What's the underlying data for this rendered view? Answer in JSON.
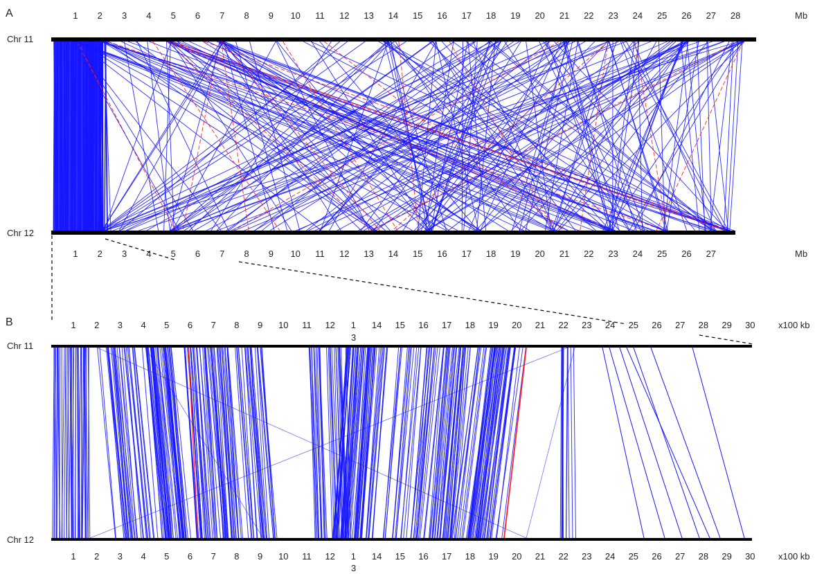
{
  "colors": {
    "syntenic": "#1515ff",
    "inverted": "#ff2222",
    "chromosome": "#000000"
  },
  "panel_a": {
    "label": "A",
    "top_chr": "Chr 11",
    "bottom_chr": "Chr 12",
    "top_unit": "Mb",
    "bottom_unit": "Mb",
    "top_ticks": [
      "1",
      "2",
      "3",
      "4",
      "5",
      "6",
      "7",
      "8",
      "9",
      "10",
      "11",
      "12",
      "13",
      "14",
      "15",
      "16",
      "17",
      "18",
      "19",
      "20",
      "21",
      "22",
      "23",
      "24",
      "25",
      "26",
      "27",
      "28"
    ],
    "bottom_ticks": [
      "1",
      "2",
      "3",
      "4",
      "5",
      "6",
      "7",
      "8",
      "9",
      "10",
      "11",
      "12",
      "13",
      "14",
      "15",
      "16",
      "17",
      "18",
      "19",
      "20",
      "21",
      "22",
      "23",
      "24",
      "25",
      "26",
      "27"
    ]
  },
  "panel_b": {
    "label": "B",
    "top_chr": "Chr 11",
    "bottom_chr": "Chr 12",
    "top_unit": "x100 kb",
    "bottom_unit": "x100 kb",
    "top_ticks": [
      "1",
      "2",
      "3",
      "4",
      "5",
      "6",
      "7",
      "8",
      "9",
      "10",
      "11",
      "12",
      "1",
      "14",
      "15",
      "16",
      "17",
      "18",
      "19",
      "20",
      "21",
      "22",
      "23",
      "24",
      "25",
      "26",
      "27",
      "28",
      "29",
      "30"
    ],
    "bottom_ticks": [
      "1",
      "2",
      "3",
      "4",
      "5",
      "6",
      "7",
      "8",
      "9",
      "10",
      "11",
      "12",
      "1",
      "14",
      "15",
      "16",
      "17",
      "18",
      "19",
      "20",
      "21",
      "22",
      "23",
      "24",
      "25",
      "26",
      "27",
      "28",
      "29",
      "30"
    ],
    "top_subscript": "3",
    "bottom_subscript": "3"
  }
}
